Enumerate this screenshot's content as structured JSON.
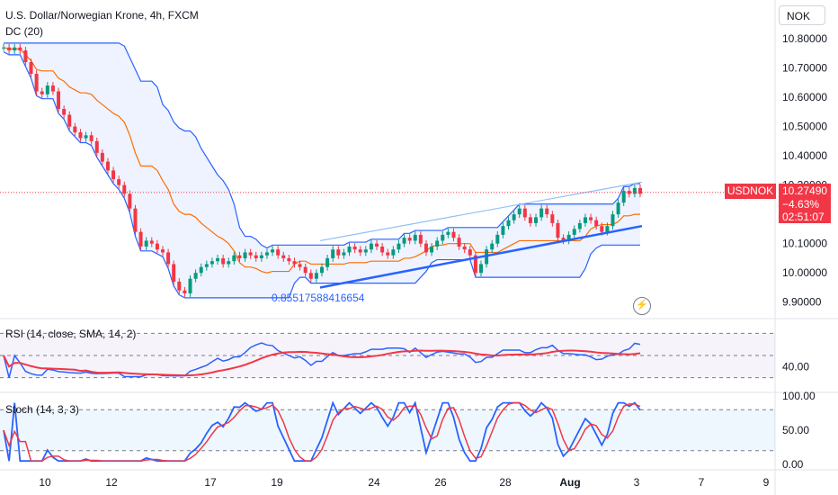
{
  "header": {
    "title": "U.S. Dollar/Norwegian Krone, 4h, FXCM",
    "indicator": "DC (20)"
  },
  "currency_button": "NOK",
  "symbol_tag": "USDNOK",
  "price_tag": {
    "price": "10.27490",
    "change": "−4.63%",
    "countdown": "02:51:07"
  },
  "drawing_label": "0.85517588416654",
  "flash_icon": "lightning-icon",
  "rsi_label": "RSI (14, close, SMA, 14, 2)",
  "stoch_label": "Stoch (14, 3, 3)",
  "colors": {
    "up": "#089981",
    "down": "#f23645",
    "donchian": "#2962ff",
    "basis": "#ff6d00",
    "rsi": "#2962ff",
    "rsi_ma": "#f23645",
    "stoch_k": "#2962ff",
    "stoch_d": "#f23645"
  },
  "chart_data": [
    {
      "type": "candlestick",
      "axis_ticks": [
        "10.80000",
        "10.70000",
        "10.60000",
        "10.50000",
        "10.40000",
        "10.30000",
        "10.10000",
        "10.00000",
        "9.90000"
      ],
      "axis_values": [
        10.8,
        10.7,
        10.6,
        10.5,
        10.4,
        10.3,
        10.1,
        10.0,
        9.9
      ],
      "x_ticks": [
        "10",
        "12",
        "17",
        "19",
        "24",
        "26",
        "28",
        "Aug",
        "3",
        "7",
        "9"
      ],
      "ylim": [
        9.85,
        10.84
      ],
      "close_series": [
        10.77,
        10.76,
        10.77,
        10.76,
        10.72,
        10.68,
        10.62,
        10.61,
        10.64,
        10.62,
        10.56,
        10.54,
        10.5,
        10.48,
        10.46,
        10.47,
        10.45,
        10.41,
        10.38,
        10.35,
        10.32,
        10.3,
        10.27,
        10.22,
        10.14,
        10.09,
        10.11,
        10.1,
        10.08,
        10.07,
        10.03,
        9.97,
        9.94,
        9.93,
        9.98,
        10.0,
        10.02,
        10.03,
        10.04,
        10.05,
        10.03,
        10.04,
        10.06,
        10.05,
        10.07,
        10.06,
        10.05,
        10.06,
        10.07,
        10.08,
        10.06,
        10.05,
        10.04,
        10.03,
        10.02,
        10.0,
        9.98,
        10.0,
        10.02,
        10.05,
        10.08,
        10.06,
        10.07,
        10.09,
        10.08,
        10.07,
        10.08,
        10.1,
        10.09,
        10.07,
        10.06,
        10.08,
        10.1,
        10.12,
        10.11,
        10.13,
        10.1,
        10.07,
        10.09,
        10.11,
        10.13,
        10.14,
        10.12,
        10.09,
        10.08,
        10.06,
        10.0,
        10.03,
        10.08,
        10.1,
        10.13,
        10.16,
        10.18,
        10.2,
        10.22,
        10.19,
        10.17,
        10.19,
        10.22,
        10.2,
        10.17,
        10.12,
        10.11,
        10.13,
        10.15,
        10.17,
        10.19,
        10.18,
        10.16,
        10.14,
        10.16,
        10.2,
        10.24,
        10.28,
        10.27,
        10.29,
        10.27
      ],
      "last_price": 10.2749,
      "donchian_upper": 10.83,
      "donchian_lower": 9.93
    },
    {
      "type": "line",
      "name": "RSI",
      "axis_ticks": [
        "40.00"
      ],
      "ylim": [
        20,
        80
      ],
      "levels": [
        70,
        50,
        30
      ]
    },
    {
      "type": "line",
      "name": "Stoch",
      "axis_ticks": [
        "100.00",
        "50.00",
        "0.00"
      ],
      "ylim": [
        0,
        100
      ],
      "levels": [
        80,
        20
      ]
    }
  ]
}
